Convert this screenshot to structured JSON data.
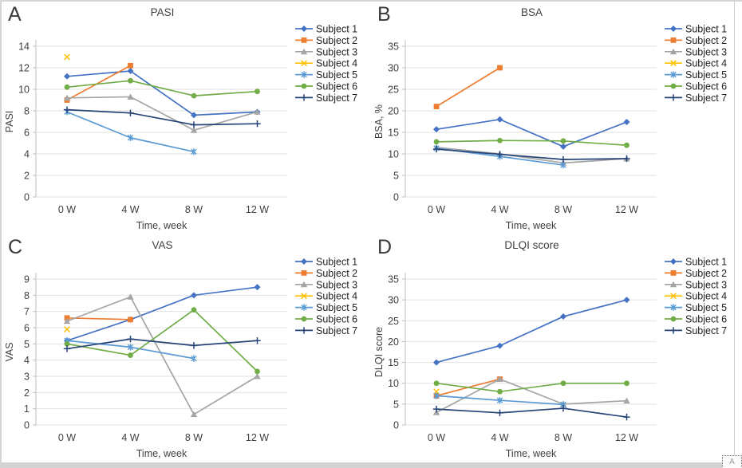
{
  "figure": {
    "corner_handle_letter": "A",
    "grid_color": "#e2e2e2",
    "axis_color": "#bfbfbf",
    "background": "#ffffff"
  },
  "series_meta": [
    {
      "name": "Subject 1",
      "color": "#4472C4",
      "marker": "diamond"
    },
    {
      "name": "Subject 2",
      "color": "#ED7D31",
      "marker": "square"
    },
    {
      "name": "Subject 3",
      "color": "#A5A5A5",
      "marker": "triangle"
    },
    {
      "name": "Subject 4",
      "color": "#FFC000",
      "marker": "x"
    },
    {
      "name": "Subject 5",
      "color": "#5B9BD5",
      "marker": "asterisk"
    },
    {
      "name": "Subject 6",
      "color": "#70AD47",
      "marker": "circle"
    },
    {
      "name": "Subject 7",
      "color": "#264478",
      "marker": "plus"
    }
  ],
  "chart_data": [
    {
      "type": "line",
      "panel_label": "A",
      "title": "PASI",
      "xlabel": "Time, week",
      "ylabel": "PASI",
      "categories": [
        "0 W",
        "4 W",
        "8 W",
        "12 W"
      ],
      "ylim": [
        0,
        14
      ],
      "ytick_step": 2,
      "grid": true,
      "legend_position": "right",
      "series": [
        {
          "name": "Subject 1",
          "values": [
            11.2,
            11.7,
            7.6,
            7.9
          ]
        },
        {
          "name": "Subject 2",
          "values": [
            9.0,
            12.2,
            null,
            null
          ]
        },
        {
          "name": "Subject 3",
          "values": [
            9.2,
            9.3,
            6.2,
            7.9
          ]
        },
        {
          "name": "Subject 4",
          "values": [
            13.0,
            null,
            null,
            null
          ]
        },
        {
          "name": "Subject 5",
          "values": [
            7.9,
            5.5,
            4.2,
            null
          ]
        },
        {
          "name": "Subject 6",
          "values": [
            10.2,
            10.8,
            9.4,
            9.8
          ]
        },
        {
          "name": "Subject 7",
          "values": [
            8.1,
            7.8,
            6.7,
            6.8
          ]
        }
      ]
    },
    {
      "type": "line",
      "panel_label": "B",
      "title": "BSA",
      "xlabel": "Time, week",
      "ylabel": "BSA, %",
      "categories": [
        "0 W",
        "4 W",
        "8 W",
        "12 W"
      ],
      "ylim": [
        0,
        35
      ],
      "ytick_step": 5,
      "grid": true,
      "legend_position": "right",
      "series": [
        {
          "name": "Subject 1",
          "values": [
            15.7,
            18,
            11.7,
            17.4
          ]
        },
        {
          "name": "Subject 2",
          "values": [
            21,
            30,
            null,
            null
          ]
        },
        {
          "name": "Subject 3",
          "values": [
            11.5,
            10,
            7.9,
            8.9
          ]
        },
        {
          "name": "Subject 4",
          "values": [
            null,
            null,
            null,
            null
          ]
        },
        {
          "name": "Subject 5",
          "values": [
            11.3,
            9.4,
            7.4,
            null
          ]
        },
        {
          "name": "Subject 6",
          "values": [
            12.8,
            13.1,
            13,
            12
          ]
        },
        {
          "name": "Subject 7",
          "values": [
            11.1,
            9.9,
            8.7,
            8.9
          ]
        }
      ]
    },
    {
      "type": "line",
      "panel_label": "C",
      "title": "VAS",
      "xlabel": "Time, week",
      "ylabel": "VAS",
      "categories": [
        "0 W",
        "4 W",
        "8 W",
        "12 W"
      ],
      "ylim": [
        0,
        9
      ],
      "ytick_step": 1,
      "grid": true,
      "legend_position": "right",
      "series": [
        {
          "name": "Subject 1",
          "values": [
            5.2,
            6.5,
            8.0,
            8.5
          ]
        },
        {
          "name": "Subject 2",
          "values": [
            6.6,
            6.5,
            null,
            null
          ]
        },
        {
          "name": "Subject 3",
          "values": [
            6.4,
            7.9,
            0.65,
            3.0
          ]
        },
        {
          "name": "Subject 4",
          "values": [
            5.9,
            null,
            null,
            null
          ]
        },
        {
          "name": "Subject 5",
          "values": [
            5.2,
            4.8,
            4.1,
            null
          ]
        },
        {
          "name": "Subject 6",
          "values": [
            5.0,
            4.3,
            7.1,
            3.3
          ]
        },
        {
          "name": "Subject 7",
          "values": [
            4.7,
            5.3,
            4.9,
            5.2
          ]
        }
      ]
    },
    {
      "type": "line",
      "panel_label": "D",
      "title": "DLQI score",
      "xlabel": "Time, week",
      "ylabel": "DLQI score",
      "categories": [
        "0 W",
        "4 W",
        "8 W",
        "12 W"
      ],
      "ylim": [
        0,
        35
      ],
      "ytick_step": 5,
      "grid": true,
      "legend_position": "right",
      "series": [
        {
          "name": "Subject 1",
          "values": [
            15,
            19,
            26,
            30
          ]
        },
        {
          "name": "Subject 2",
          "values": [
            7,
            11,
            null,
            null
          ]
        },
        {
          "name": "Subject 3",
          "values": [
            3,
            11,
            5,
            5.8
          ]
        },
        {
          "name": "Subject 4",
          "values": [
            8,
            null,
            null,
            null
          ]
        },
        {
          "name": "Subject 5",
          "values": [
            7,
            5.9,
            4.9,
            null
          ]
        },
        {
          "name": "Subject 6",
          "values": [
            10,
            8,
            10,
            10
          ]
        },
        {
          "name": "Subject 7",
          "values": [
            3.8,
            2.9,
            4,
            1.9
          ]
        }
      ]
    }
  ]
}
